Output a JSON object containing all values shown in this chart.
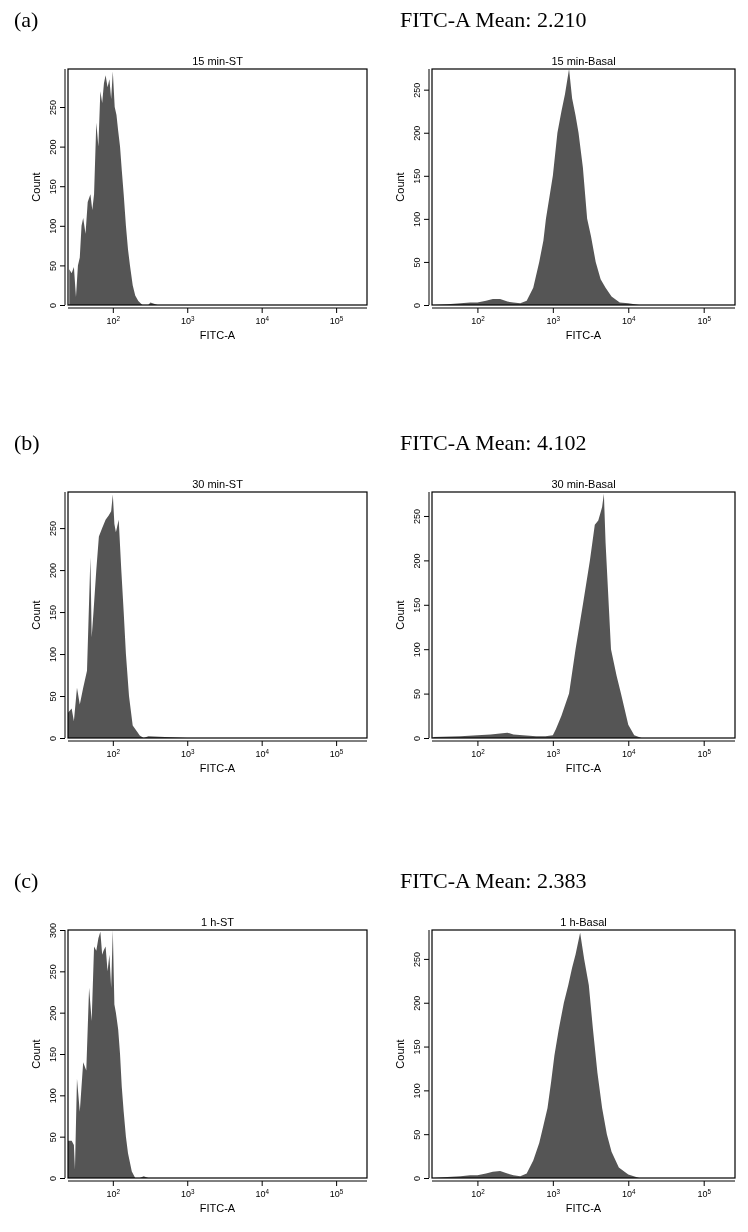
{
  "chart_data": [
    {
      "type": "area",
      "title": "15 min-ST",
      "xlabel": "FITC-A",
      "ylabel": "Count",
      "annotations": [
        "(a)"
      ],
      "log": "x",
      "xlim": [
        25,
        260000
      ],
      "ylim": [
        0,
        298
      ],
      "xticks": [
        {
          "value": 100,
          "label": "10$^{2}$"
        },
        {
          "value": 1000,
          "label": "10$^{3}$"
        },
        {
          "value": 10000,
          "label": "10$^{4}$"
        },
        {
          "value": 100000,
          "label": "10$^{5}$"
        }
      ],
      "yticks": [
        0,
        50,
        100,
        150,
        200,
        250
      ],
      "series": [
        {
          "color": "#555555",
          "x": [
            26,
            28,
            30,
            32,
            34,
            36,
            38,
            40,
            43,
            46,
            50,
            53,
            56,
            60,
            64,
            68,
            72,
            76,
            80,
            85,
            90,
            95,
            100,
            106,
            112,
            118,
            125,
            132,
            140,
            150,
            160,
            170,
            185,
            200,
            220,
            250,
            300,
            320,
            400,
            1000,
            10000,
            260000
          ],
          "values": [
            45,
            40,
            48,
            10,
            50,
            60,
            100,
            110,
            90,
            130,
            140,
            120,
            140,
            230,
            200,
            270,
            255,
            280,
            290,
            275,
            285,
            260,
            295,
            250,
            240,
            220,
            200,
            170,
            140,
            100,
            70,
            50,
            25,
            12,
            5,
            0,
            0,
            3,
            0,
            0,
            0,
            0
          ]
        }
      ]
    },
    {
      "type": "area",
      "title": "15 min-Basal",
      "xlabel": "FITC-A",
      "ylabel": "Count",
      "annotations": [
        "FITC-A Mean: 2.210"
      ],
      "log": "x",
      "xlim": [
        25,
        260000
      ],
      "ylim": [
        0,
        274
      ],
      "xticks": [
        {
          "value": 100,
          "label": "10$^{2}$"
        },
        {
          "value": 1000,
          "label": "10$^{3}$"
        },
        {
          "value": 10000,
          "label": "10$^{4}$"
        },
        {
          "value": 100000,
          "label": "10$^{5}$"
        }
      ],
      "yticks": [
        0,
        50,
        100,
        150,
        200,
        250
      ],
      "series": [
        {
          "color": "#555555",
          "x": [
            26,
            40,
            60,
            80,
            100,
            130,
            160,
            200,
            250,
            300,
            370,
            450,
            550,
            660,
            750,
            810,
            900,
            1000,
            1150,
            1300,
            1450,
            1640,
            1800,
            2000,
            2190,
            2500,
            2850,
            3200,
            3700,
            4300,
            5000,
            6000,
            7700,
            10000,
            14000,
            30000,
            100000,
            260000
          ],
          "values": [
            0,
            1,
            2,
            3,
            3,
            5,
            7,
            7,
            4,
            3,
            2,
            5,
            20,
            50,
            75,
            100,
            125,
            150,
            200,
            225,
            245,
            274,
            240,
            220,
            200,
            160,
            100,
            80,
            50,
            30,
            20,
            10,
            3,
            2,
            0,
            0,
            0,
            0
          ]
        }
      ]
    },
    {
      "type": "area",
      "title": "30 min-ST",
      "xlabel": "FITC-A",
      "ylabel": "Count",
      "annotations": [
        "(b)"
      ],
      "log": "x",
      "xlim": [
        25,
        260000
      ],
      "ylim": [
        0,
        293
      ],
      "xticks": [
        {
          "value": 100,
          "label": "10$^{2}$"
        },
        {
          "value": 1000,
          "label": "10$^{3}$"
        },
        {
          "value": 10000,
          "label": "10$^{4}$"
        },
        {
          "value": 100000,
          "label": "10$^{5}$"
        }
      ],
      "yticks": [
        0,
        50,
        100,
        150,
        200,
        250
      ],
      "series": [
        {
          "color": "#555555",
          "x": [
            25,
            28,
            30,
            33,
            36,
            40,
            45,
            50,
            52,
            55,
            60,
            65,
            72,
            80,
            88,
            95,
            100,
            105,
            110,
            120,
            130,
            140,
            150,
            165,
            185,
            210,
            230,
            260,
            300,
            1000,
            10000,
            260000
          ],
          "values": [
            30,
            35,
            20,
            60,
            40,
            60,
            80,
            215,
            120,
            150,
            200,
            240,
            250,
            260,
            265,
            270,
            290,
            255,
            245,
            260,
            200,
            150,
            100,
            50,
            15,
            8,
            3,
            0,
            2,
            0,
            0,
            0
          ]
        }
      ]
    },
    {
      "type": "area",
      "title": "30 min-Basal",
      "xlabel": "FITC-A",
      "ylabel": "Count",
      "annotations": [
        "FITC-A Mean: 4.102"
      ],
      "log": "x",
      "xlim": [
        25,
        260000
      ],
      "ylim": [
        0,
        277
      ],
      "xticks": [
        {
          "value": 100,
          "label": "10$^{2}$"
        },
        {
          "value": 1000,
          "label": "10$^{3}$"
        },
        {
          "value": 10000,
          "label": "10$^{4}$"
        },
        {
          "value": 100000,
          "label": "10$^{5}$"
        }
      ],
      "yticks": [
        0,
        50,
        100,
        150,
        200,
        250
      ],
      "series": [
        {
          "color": "#555555",
          "x": [
            26,
            60,
            100,
            150,
            200,
            250,
            300,
            400,
            600,
            800,
            1000,
            1100,
            1300,
            1640,
            2000,
            2500,
            3100,
            3600,
            4000,
            4500,
            4750,
            5000,
            5900,
            7000,
            8000,
            10000,
            12000,
            15000,
            30000,
            260000
          ],
          "values": [
            1,
            2,
            3,
            4,
            5,
            6,
            4,
            3,
            2,
            2,
            3,
            10,
            25,
            50,
            100,
            150,
            200,
            240,
            245,
            260,
            275,
            220,
            100,
            70,
            50,
            15,
            3,
            0,
            0,
            0
          ]
        }
      ]
    },
    {
      "type": "area",
      "title": "1 h-ST",
      "xlabel": "FITC-A",
      "ylabel": "Count",
      "annotations": [
        "(c)"
      ],
      "log": "x",
      "xlim": [
        25,
        260000
      ],
      "ylim": [
        0,
        300
      ],
      "xticks": [
        {
          "value": 100,
          "label": "10$^{2}$"
        },
        {
          "value": 1000,
          "label": "10$^{3}$"
        },
        {
          "value": 10000,
          "label": "10$^{4}$"
        },
        {
          "value": 100000,
          "label": "10$^{5}$"
        }
      ],
      "yticks": [
        0,
        50,
        100,
        150,
        200,
        250,
        300
      ],
      "series": [
        {
          "color": "#555555",
          "x": [
            25,
            28,
            30,
            31,
            33,
            36,
            40,
            44,
            48,
            52,
            56,
            60,
            64,
            68,
            72,
            75,
            80,
            85,
            90,
            95,
            100,
            105,
            110,
            118,
            125,
            132,
            140,
            150,
            160,
            180,
            200,
            230,
            260,
            300,
            1000,
            10000,
            260000
          ],
          "values": [
            45,
            45,
            40,
            10,
            120,
            80,
            140,
            130,
            230,
            190,
            280,
            275,
            290,
            298,
            270,
            275,
            280,
            250,
            270,
            230,
            300,
            210,
            200,
            180,
            150,
            110,
            80,
            50,
            30,
            8,
            0,
            0,
            2,
            0,
            0,
            0,
            0
          ]
        }
      ]
    },
    {
      "type": "area",
      "title": "1 h-Basal",
      "xlabel": "FITC-A",
      "ylabel": "Count",
      "annotations": [
        "FITC-A Mean: 2.383"
      ],
      "log": "x",
      "xlim": [
        25,
        260000
      ],
      "ylim": [
        0,
        283
      ],
      "xticks": [
        {
          "value": 100,
          "label": "10$^{2}$"
        },
        {
          "value": 1000,
          "label": "10$^{3}$"
        },
        {
          "value": 10000,
          "label": "10$^{4}$"
        },
        {
          "value": 100000,
          "label": "10$^{5}$"
        }
      ],
      "yticks": [
        0,
        50,
        100,
        150,
        200,
        250
      ],
      "series": [
        {
          "color": "#555555",
          "x": [
            26,
            40,
            60,
            80,
            100,
            130,
            160,
            200,
            250,
            300,
            370,
            450,
            550,
            660,
            750,
            850,
            950,
            1050,
            1200,
            1400,
            1600,
            1800,
            2000,
            2300,
            2600,
            3000,
            3400,
            3900,
            4500,
            5200,
            6000,
            7500,
            10000,
            14000,
            30000,
            100000,
            260000
          ],
          "values": [
            0,
            1,
            2,
            3,
            3,
            5,
            7,
            8,
            5,
            3,
            2,
            5,
            20,
            40,
            60,
            80,
            110,
            140,
            170,
            200,
            220,
            240,
            255,
            280,
            250,
            220,
            170,
            120,
            80,
            50,
            30,
            12,
            4,
            0,
            0,
            0,
            0
          ]
        }
      ]
    }
  ]
}
